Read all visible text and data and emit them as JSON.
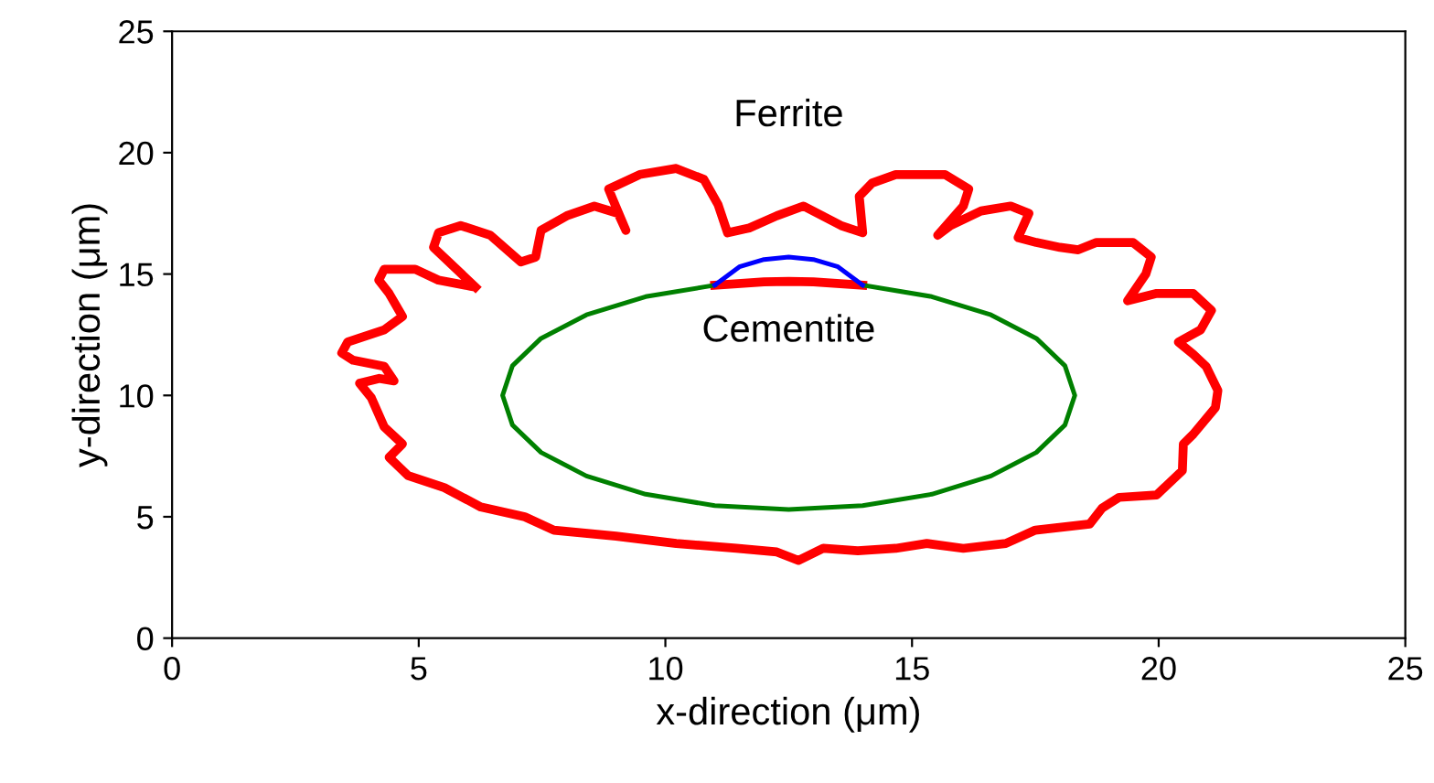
{
  "chart_data": {
    "type": "line",
    "xlabel": "x-direction (μm)",
    "ylabel": "y-direction (μm)",
    "xlim": [
      0,
      25
    ],
    "ylim": [
      0,
      25
    ],
    "xticks": [
      0,
      5,
      10,
      15,
      20,
      25
    ],
    "yticks": [
      0,
      5,
      10,
      15,
      20,
      25
    ],
    "grid": false,
    "legend": false,
    "marker": "none",
    "line_style": "solid",
    "annotations": [
      "Ferrite",
      "Cementite"
    ],
    "series": [
      {
        "color": "#ff0000",
        "x": [
          6.15,
          5.3,
          5.4,
          5.85,
          6.45,
          7.07,
          7.37,
          7.48,
          8.0,
          8.56,
          9.04,
          9.2,
          8.93,
          8.85,
          9.48,
          10.22,
          10.78,
          11.07,
          11.26,
          11.7,
          12.26,
          12.8,
          13.56,
          14.0,
          13.93,
          14.19,
          14.67,
          15.67,
          16.15,
          16.04,
          15.52,
          15.78,
          16.4,
          17.0,
          17.37,
          17.15,
          17.52,
          18.0,
          18.37,
          18.74,
          19.48,
          19.85,
          19.74,
          19.37,
          19.96,
          20.7,
          21.07,
          20.85,
          20.4,
          20.7,
          20.96,
          21.2,
          21.15,
          20.7,
          20.5,
          20.48,
          19.96,
          19.2,
          18.85,
          18.6,
          17.5,
          16.9,
          16.04,
          15.3,
          14.67,
          13.9,
          13.2,
          12.7,
          12.26,
          11.44,
          10.22,
          9.0,
          7.74,
          7.15,
          6.26,
          5.52,
          4.78,
          4.4,
          4.67,
          4.3,
          4.04,
          3.8,
          4.2,
          4.5,
          4.3,
          3.67,
          3.44,
          3.56,
          4.3,
          4.67,
          4.4,
          4.19,
          4.3,
          4.93,
          5.4,
          6.05,
          null,
          11.0,
          12.0,
          12.5,
          13.0,
          14.0
        ],
        "values": [
          14.46,
          16.1,
          16.7,
          17.0,
          16.6,
          15.5,
          15.7,
          16.8,
          17.4,
          17.8,
          17.5,
          16.8,
          18.1,
          18.5,
          19.1,
          19.35,
          18.9,
          17.85,
          16.7,
          16.9,
          17.4,
          17.8,
          17.0,
          16.7,
          18.2,
          18.75,
          19.1,
          19.1,
          18.5,
          17.8,
          16.6,
          17.0,
          17.6,
          17.8,
          17.5,
          16.5,
          16.3,
          16.1,
          16.0,
          16.3,
          16.3,
          15.7,
          15.0,
          13.9,
          14.2,
          14.2,
          13.5,
          12.7,
          12.2,
          11.7,
          11.2,
          10.2,
          9.5,
          8.4,
          8.0,
          6.9,
          5.9,
          5.8,
          5.35,
          4.7,
          4.45,
          3.9,
          3.7,
          3.9,
          3.7,
          3.6,
          3.7,
          3.2,
          3.55,
          3.7,
          3.9,
          4.2,
          4.45,
          5.0,
          5.4,
          6.2,
          6.7,
          7.45,
          8.0,
          8.7,
          9.9,
          10.5,
          10.7,
          10.6,
          11.2,
          11.45,
          11.75,
          12.2,
          12.7,
          13.25,
          14.2,
          14.75,
          15.2,
          15.2,
          14.75,
          14.5,
          null,
          14.54,
          14.68,
          14.7,
          14.68,
          14.54
        ]
      },
      {
        "color": "#008000",
        "x": [
          14.0,
          15.4,
          16.6,
          17.52,
          18.1,
          18.3,
          18.1,
          17.52,
          16.6,
          15.4,
          14.0,
          12.5,
          11.0,
          9.6,
          8.4,
          7.48,
          6.9,
          6.7,
          6.9,
          7.48,
          8.4,
          9.6,
          11.0
        ],
        "values": [
          14.54,
          14.07,
          13.32,
          12.35,
          11.22,
          10.0,
          8.78,
          7.65,
          6.68,
          5.93,
          5.46,
          5.3,
          5.46,
          5.93,
          6.68,
          7.65,
          8.78,
          10.0,
          11.22,
          12.35,
          13.32,
          14.07,
          14.54
        ]
      },
      {
        "color": "#0000ff",
        "x": [
          11.0,
          11.5,
          12.0,
          12.5,
          13.0,
          13.5,
          14.0
        ],
        "values": [
          14.54,
          15.3,
          15.6,
          15.7,
          15.6,
          15.3,
          14.54
        ]
      }
    ]
  }
}
